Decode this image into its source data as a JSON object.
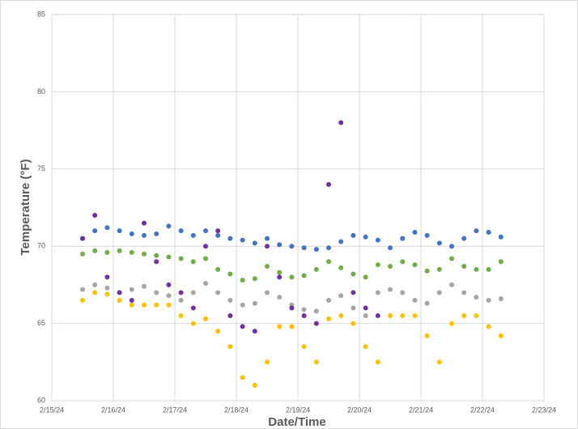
{
  "chart_data": {
    "type": "scatter",
    "x_label": "Date/Time",
    "y_label": "Temperature (°F)",
    "x": [
      45337.5,
      45337.7,
      45337.9,
      45338.1,
      45338.3,
      45338.5,
      45338.7,
      45338.9,
      45339.1,
      45339.3,
      45339.5,
      45339.7,
      45339.9,
      45340.1,
      45340.3,
      45340.5,
      45340.7,
      45340.9,
      45341.1,
      45341.3,
      45341.5,
      45341.7,
      45341.9,
      45342.1,
      45342.3,
      45342.5,
      45342.7,
      45342.9,
      45343.1,
      45343.3,
      45343.5,
      45343.7,
      45343.9,
      45344.1,
      45344.3
    ],
    "series": [
      {
        "color": "#4472c4",
        "values": [
          70.5,
          71,
          71.2,
          71,
          70.8,
          70.7,
          70.8,
          71.3,
          71,
          70.7,
          71,
          70.7,
          70.5,
          70.4,
          70.2,
          70.5,
          70.1,
          70,
          69.9,
          69.8,
          69.9,
          70.3,
          70.7,
          70.6,
          70.4,
          69.9,
          70.5,
          70.9,
          70.7,
          70.2,
          70,
          70.5,
          71,
          70.9,
          70.6
        ]
      },
      {
        "color": "#70ad47",
        "values": [
          69.5,
          69.7,
          69.6,
          69.7,
          69.6,
          69.5,
          69.4,
          69.3,
          69.2,
          69,
          69.2,
          68.5,
          68.2,
          67.8,
          67.9,
          68.7,
          68.3,
          68,
          68.1,
          68.5,
          69,
          68.6,
          68.2,
          68,
          68.8,
          68.7,
          69,
          68.8,
          68.4,
          68.5,
          69.2,
          68.7,
          68.5,
          68.5,
          69
        ]
      },
      {
        "color": "#a5a5a5",
        "values": [
          67.2,
          67.5,
          67.3,
          67,
          67.2,
          67.4,
          67,
          66.8,
          66.5,
          67,
          67.6,
          67,
          66.5,
          66.2,
          66.3,
          67,
          66.7,
          66.2,
          65.9,
          65.8,
          66.5,
          66.8,
          66,
          65.5,
          67,
          67.2,
          67,
          66.5,
          66.3,
          67,
          67.5,
          67,
          66.7,
          66.5,
          66.6
        ]
      },
      {
        "color": "#ffc000",
        "values": [
          66.5,
          67,
          66.9,
          66.5,
          66.2,
          66.2,
          66.2,
          66.2,
          65.5,
          65,
          65.3,
          64.5,
          63.5,
          61.5,
          61,
          62.5,
          64.8,
          64.8,
          63.5,
          62.5,
          65.3,
          65.5,
          65,
          63.5,
          62.5,
          65.5,
          65.5,
          65.5,
          64.2,
          62.5,
          65,
          65.5,
          65.5,
          64.8,
          64.2
        ]
      },
      {
        "color": "#7030a0",
        "values": [
          70.5,
          72,
          68,
          67,
          66.5,
          71.5,
          69,
          67.5,
          67,
          66,
          70,
          71,
          65.5,
          64.8,
          64.5,
          70,
          68,
          66,
          65.5,
          65,
          74,
          78,
          67,
          66,
          65.5,
          null,
          null,
          null,
          null,
          null,
          null,
          null,
          null,
          null,
          null
        ]
      }
    ],
    "xlim": [
      45337,
      45345
    ],
    "xticks": [
      {
        "value": 45337,
        "label": "2/15/24"
      },
      {
        "value": 45338,
        "label": "2/16/24"
      },
      {
        "value": 45339,
        "label": "2/17/24"
      },
      {
        "value": 45340,
        "label": "2/18/24"
      },
      {
        "value": 45341,
        "label": "2/19/24"
      },
      {
        "value": 45342,
        "label": "2/20/24"
      },
      {
        "value": 45343,
        "label": "2/21/24"
      },
      {
        "value": 45344,
        "label": "2/22/24"
      },
      {
        "value": 45345,
        "label": "2/23/24"
      }
    ],
    "ylim": [
      60,
      85
    ],
    "yticks": [
      60,
      65,
      70,
      75,
      80,
      85
    ],
    "grid": true
  }
}
